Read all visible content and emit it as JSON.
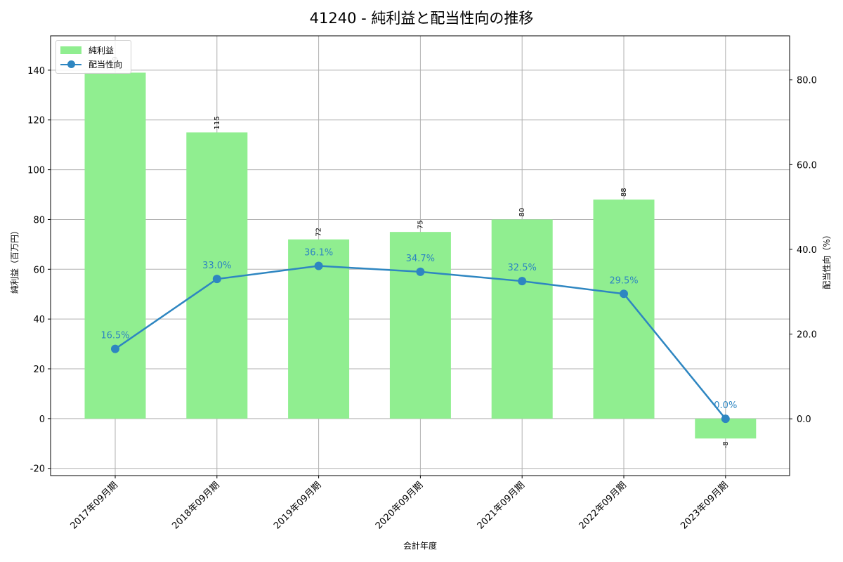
{
  "title": "41240 - 純利益と配当性向の推移",
  "legend": {
    "bar_label": "純利益",
    "line_label": "配当性向"
  },
  "axes": {
    "xlabel": "会計年度",
    "ylabel_left": "純利益（百万円）",
    "ylabel_right": "配当性向（%）"
  },
  "colors": {
    "bar": "#90ee90",
    "line": "#2e86c1",
    "grid": "#b0b0b0"
  },
  "chart_data": {
    "type": "bar+line",
    "title": "41240 - 純利益と配当性向の推移",
    "xlabel": "会計年度",
    "categories": [
      "2017年09月期",
      "2018年09月期",
      "2019年09月期",
      "2020年09月期",
      "2021年09月期",
      "2022年09月期",
      "2023年09月期"
    ],
    "series": [
      {
        "name": "純利益",
        "type": "bar",
        "axis": "left",
        "values": [
          139,
          115,
          72,
          75,
          80,
          88,
          -8
        ],
        "labels": [
          "139",
          "115",
          "72",
          "75",
          "80",
          "88",
          "-8"
        ]
      },
      {
        "name": "配当性向",
        "type": "line",
        "axis": "right",
        "values": [
          16.5,
          33.0,
          36.1,
          34.7,
          32.5,
          29.5,
          0.0
        ],
        "labels": [
          "16.5%",
          "33.0%",
          "36.1%",
          "34.7%",
          "32.5%",
          "29.5%",
          "0.0%"
        ]
      }
    ],
    "ylabel_left": "純利益（百万円）",
    "ylabel_right": "配当性向（%）",
    "ylim_left": [
      -22.9,
      153.8
    ],
    "ylim_right": [
      -13.4,
      90.4
    ],
    "yticks_left": [
      "-20",
      "0",
      "20",
      "40",
      "60",
      "80",
      "100",
      "120",
      "140"
    ],
    "yticks_right": [
      "0.0",
      "20.0",
      "40.0",
      "60.0",
      "80.0"
    ],
    "grid": true,
    "legend_position": "upper left"
  }
}
